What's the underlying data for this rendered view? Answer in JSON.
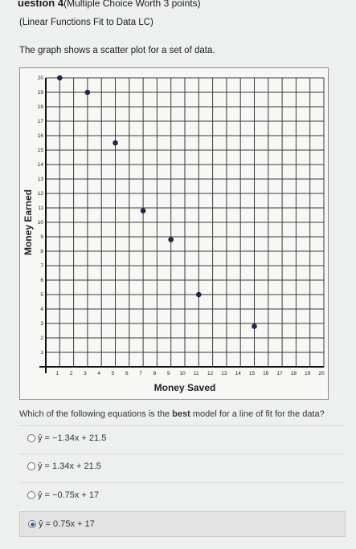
{
  "header": {
    "question_label": "uestion 4",
    "points_label": "(Multiple Choice Worth 3 points)",
    "subtitle": "(Linear Functions Fit to Data LC)",
    "prompt": "The graph shows a scatter plot for a set of data."
  },
  "chart_data": {
    "type": "scatter",
    "xlabel": "Money Saved",
    "ylabel": "Money Earned",
    "xlim": [
      0,
      20
    ],
    "ylim": [
      0,
      20
    ],
    "grid": true,
    "x_ticks": [
      "1",
      "2",
      "3",
      "4",
      "5",
      "6",
      "7",
      "8",
      "9",
      "10",
      "11",
      "12",
      "13",
      "14",
      "15",
      "16",
      "17",
      "18",
      "19",
      "20"
    ],
    "y_ticks": [
      "1",
      "2",
      "3",
      "4",
      "5",
      "6",
      "7",
      "8",
      "9",
      "10",
      "11",
      "12",
      "13",
      "14",
      "15",
      "16",
      "17",
      "18",
      "19",
      "20"
    ],
    "points": [
      {
        "x": 1,
        "y": 20
      },
      {
        "x": 3,
        "y": 19
      },
      {
        "x": 5,
        "y": 15.5
      },
      {
        "x": 7,
        "y": 10.8
      },
      {
        "x": 9,
        "y": 8.8
      },
      {
        "x": 11,
        "y": 5
      },
      {
        "x": 15,
        "y": 2.8
      }
    ],
    "point_color": "#1a2a4a"
  },
  "question": {
    "before": "Which of the following equations is the ",
    "emphasis": "best",
    "after": " model for a line of fit for the data?"
  },
  "choices": [
    {
      "label": "ŷ = −1.34x + 21.5",
      "selected": false
    },
    {
      "label": "ŷ = 1.34x + 21.5",
      "selected": false
    },
    {
      "label": "ŷ = −0.75x + 17",
      "selected": false
    },
    {
      "label": "ŷ = 0.75x + 17",
      "selected": true
    }
  ],
  "colors": {
    "radio_selected": "#2f62b5",
    "selected_bg": "#e3e3e3"
  }
}
